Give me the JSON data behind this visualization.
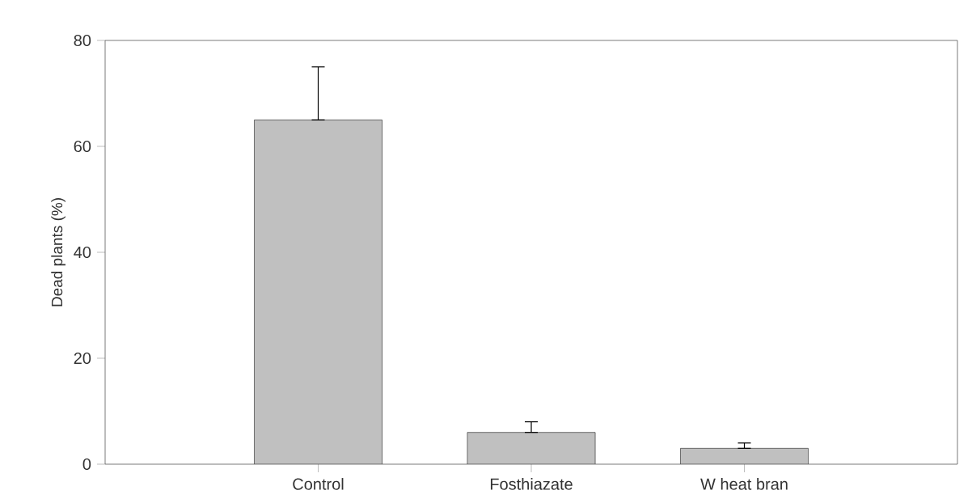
{
  "chart_data": {
    "type": "bar",
    "ylabel": "Dead plants (%)",
    "categories": [
      "Control",
      "Fosthiazate",
      "W heat bran"
    ],
    "values": [
      65,
      6,
      3
    ],
    "errors": [
      [
        65,
        75
      ],
      [
        6,
        8
      ],
      [
        3,
        4
      ]
    ],
    "color": "#c0c0c0",
    "ylim": [
      0,
      80
    ],
    "yticks": [
      0,
      20,
      40,
      60,
      80
    ]
  }
}
